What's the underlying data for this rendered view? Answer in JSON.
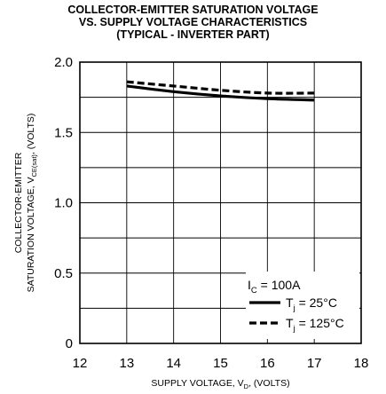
{
  "chart_data": {
    "type": "line",
    "title": [
      "COLLECTOR-EMITTER SATURATION VOLTAGE",
      "VS. SUPPLY VOLTAGE CHARACTERISTICS",
      "(TYPICAL - INVERTER PART)"
    ],
    "xlabel": {
      "main": "SUPPLY VOLTAGE, V",
      "sub": "D",
      "tail": ", (VOLTS)"
    },
    "ylabel": {
      "line1": "COLLECTOR-EMITTER",
      "line2_main": "SATURATION VOLTAGE, V",
      "line2_sub": "CE(sat)",
      "line2_tail": ", (VOLTS)"
    },
    "xlim": [
      12,
      18
    ],
    "ylim": [
      0,
      2.0
    ],
    "xticks": [
      "12",
      "13",
      "14",
      "15",
      "16",
      "17",
      "18"
    ],
    "yticks": [
      "0",
      "0.5",
      "1.0",
      "1.5",
      "2.0"
    ],
    "grid": true,
    "legend_position": "bottom-right",
    "legend_header": {
      "main": "I",
      "sub": "C",
      "tail": " = 100A"
    },
    "series": [
      {
        "name_main": "T",
        "name_sub": "j",
        "name_tail": " = 25°C",
        "style": "solid",
        "x": [
          13,
          14,
          15,
          16,
          17
        ],
        "y": [
          1.83,
          1.79,
          1.76,
          1.74,
          1.73
        ]
      },
      {
        "name_main": "T",
        "name_sub": "j",
        "name_tail": " = 125°C",
        "style": "dashed",
        "x": [
          13,
          14,
          15,
          16,
          17
        ],
        "y": [
          1.86,
          1.83,
          1.8,
          1.78,
          1.78
        ]
      }
    ]
  }
}
